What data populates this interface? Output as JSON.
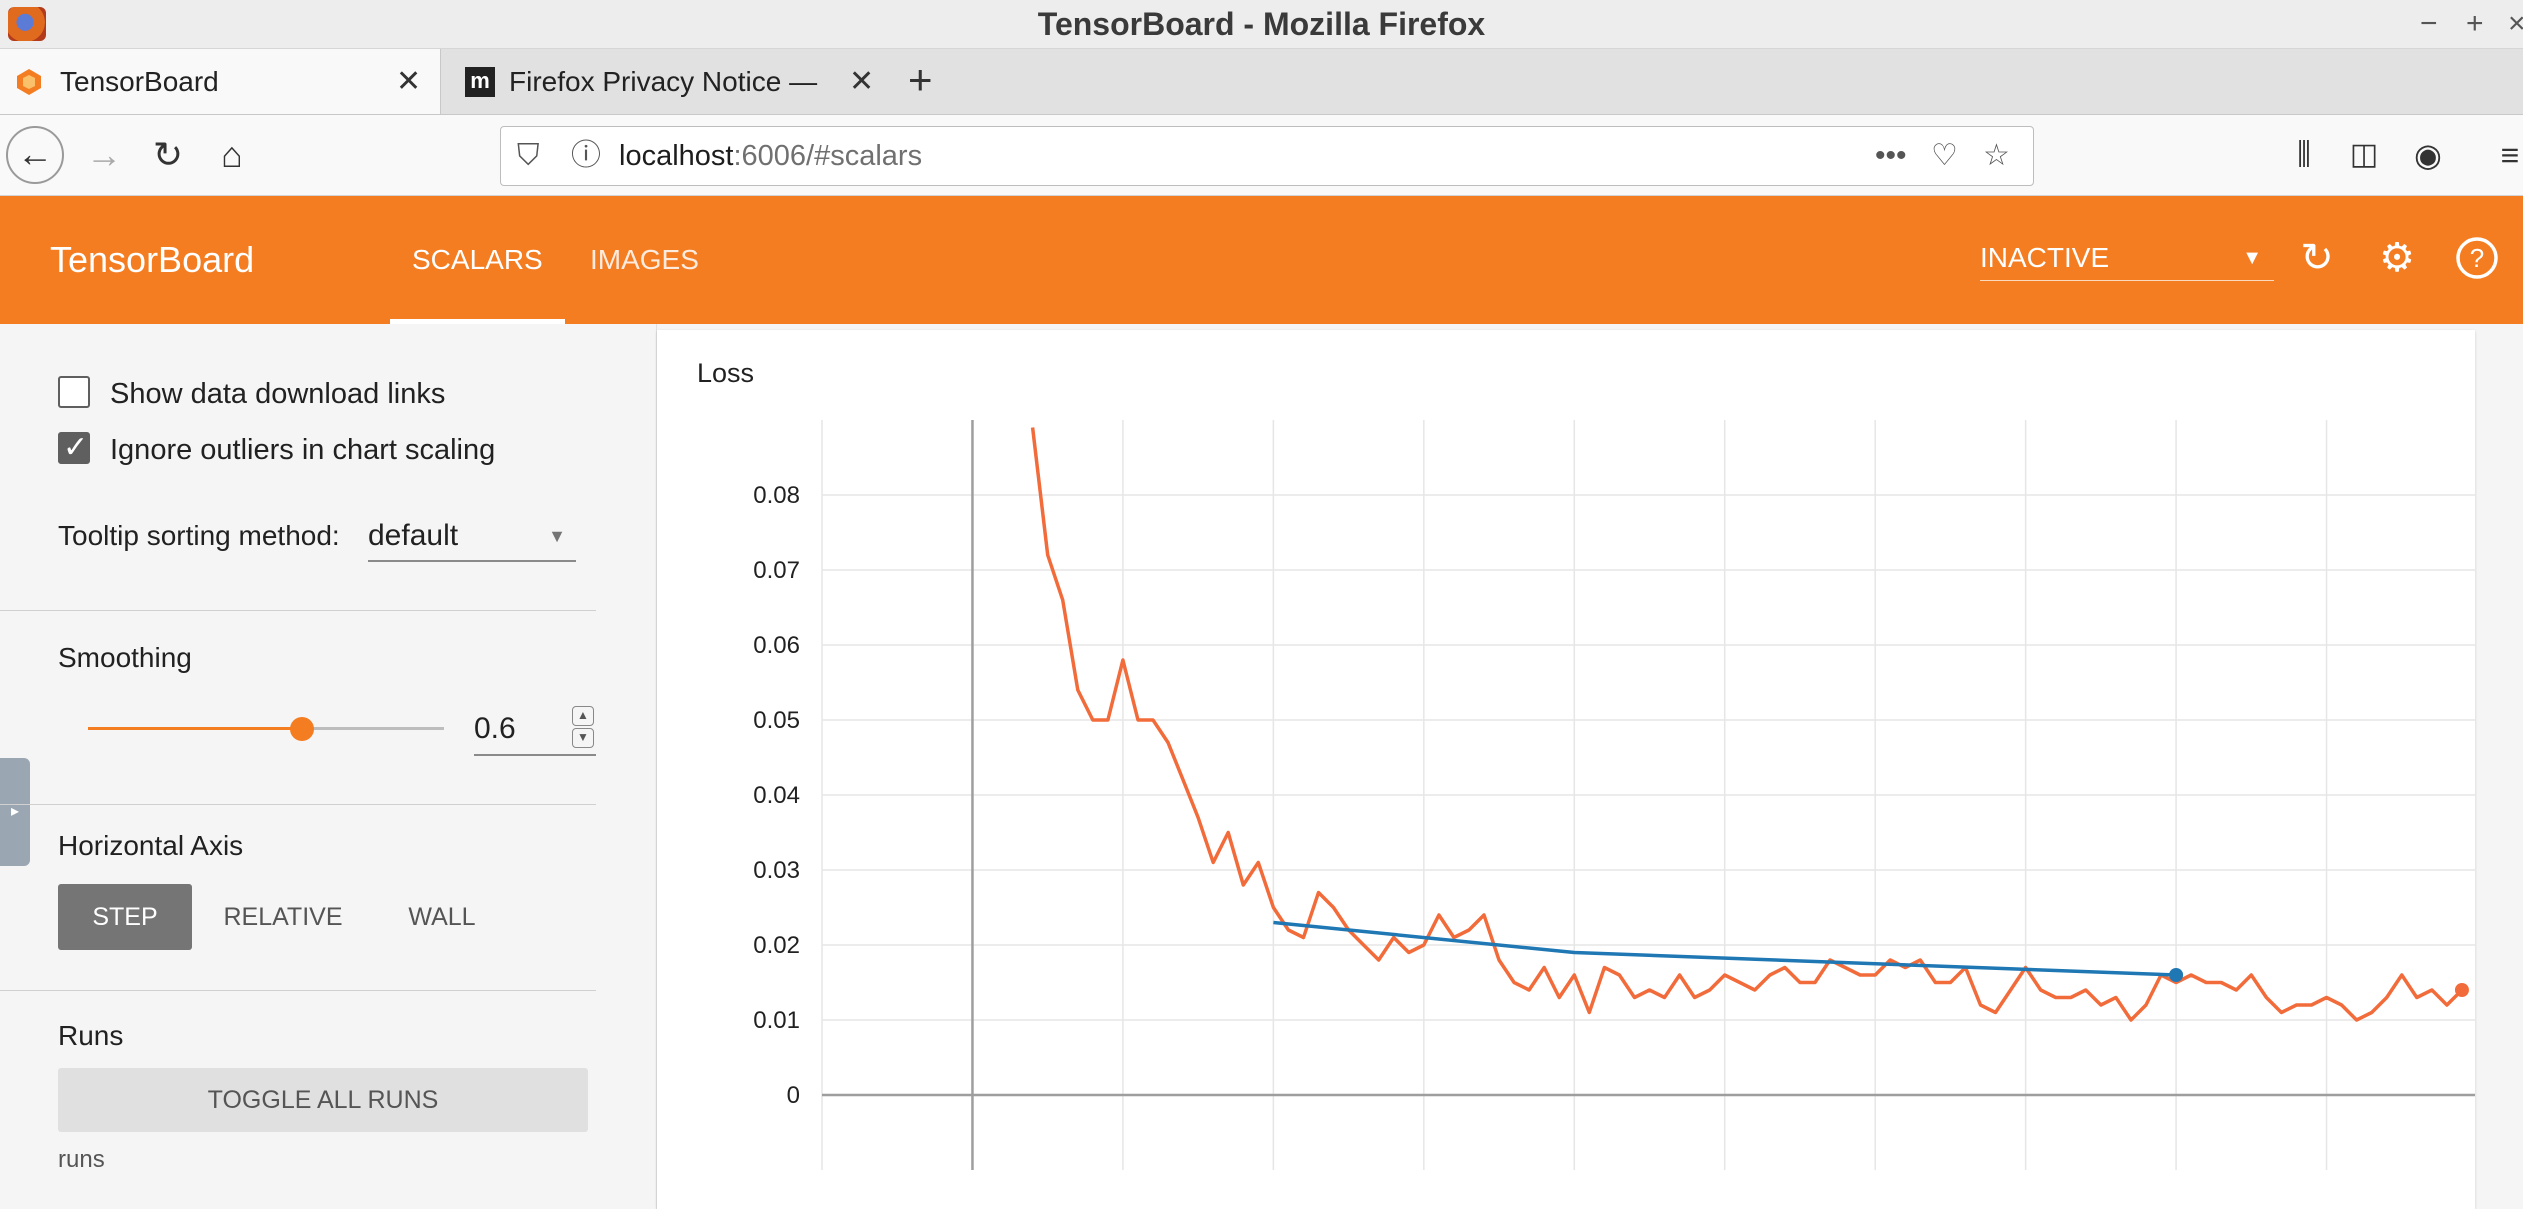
{
  "window": {
    "title": "TensorBoard - Mozilla Firefox",
    "minimize": "−",
    "maximize": "+",
    "close": "×"
  },
  "tabs": [
    {
      "label": "TensorBoard",
      "active": true,
      "close": "✕"
    },
    {
      "label": "Firefox Privacy Notice —",
      "active": false,
      "close": "✕"
    }
  ],
  "new_tab": "+",
  "url": {
    "host": "localhost",
    "rest": ":6006/#scalars"
  },
  "tensorboard": {
    "brand": "TensorBoard",
    "tabs": [
      "SCALARS",
      "IMAGES"
    ],
    "active_tab": "SCALARS",
    "run_status": "INACTIVE",
    "accent_color": "#f47d22"
  },
  "sidebar": {
    "show_download_links": {
      "label": "Show data download links",
      "checked": false
    },
    "ignore_outliers": {
      "label": "Ignore outliers in chart scaling",
      "checked": true
    },
    "tooltip_sorting": {
      "label": "Tooltip sorting method:",
      "value": "default"
    },
    "smoothing": {
      "label": "Smoothing",
      "value": "0.6",
      "fraction": 0.6
    },
    "horizontal_axis": {
      "label": "Horizontal Axis",
      "options": [
        "STEP",
        "RELATIVE",
        "WALL"
      ],
      "selected": "STEP"
    },
    "runs": {
      "label": "Runs",
      "toggle_button": "TOGGLE ALL RUNS",
      "caption": "runs"
    }
  },
  "chart_data": {
    "type": "line",
    "title": "Loss",
    "ylim": [
      -0.01,
      0.09
    ],
    "yticks": [
      "0.08",
      "0.07",
      "0.06",
      "0.05",
      "0.04",
      "0.03",
      "0.02",
      "0.01",
      "0"
    ],
    "x_range": [
      -10,
      100
    ],
    "grid": true,
    "series": [
      {
        "color": "#f26b3a",
        "x": [
          4,
          5,
          6,
          7,
          8,
          9,
          10,
          11,
          12,
          13,
          14,
          15,
          16,
          17,
          18,
          19,
          20,
          21,
          22,
          23,
          24,
          25,
          26,
          27,
          28,
          29,
          30,
          31,
          32,
          33,
          34,
          35,
          36,
          37,
          38,
          39,
          40,
          41,
          42,
          43,
          44,
          45,
          46,
          47,
          48,
          49,
          50,
          51,
          52,
          53,
          54,
          55,
          56,
          57,
          58,
          59,
          60,
          61,
          62,
          63,
          64,
          65,
          66,
          67,
          68,
          69,
          70,
          71,
          72,
          73,
          74,
          75,
          76,
          77,
          78,
          79,
          80,
          81,
          82,
          83,
          84,
          85,
          86,
          87,
          88,
          89,
          90,
          91,
          92,
          93,
          94,
          95,
          96,
          97,
          98,
          99
        ],
        "y": [
          0.089,
          0.072,
          0.066,
          0.054,
          0.05,
          0.05,
          0.058,
          0.05,
          0.05,
          0.047,
          0.042,
          0.037,
          0.031,
          0.035,
          0.028,
          0.031,
          0.025,
          0.022,
          0.021,
          0.027,
          0.025,
          0.022,
          0.02,
          0.018,
          0.021,
          0.019,
          0.02,
          0.024,
          0.021,
          0.022,
          0.024,
          0.018,
          0.015,
          0.014,
          0.017,
          0.013,
          0.016,
          0.011,
          0.017,
          0.016,
          0.013,
          0.014,
          0.013,
          0.016,
          0.013,
          0.014,
          0.016,
          0.015,
          0.014,
          0.016,
          0.017,
          0.015,
          0.015,
          0.018,
          0.017,
          0.016,
          0.016,
          0.018,
          0.017,
          0.018,
          0.015,
          0.015,
          0.017,
          0.012,
          0.011,
          0.014,
          0.017,
          0.014,
          0.013,
          0.013,
          0.014,
          0.012,
          0.013,
          0.01,
          0.012,
          0.016,
          0.015,
          0.016,
          0.015,
          0.015,
          0.014,
          0.016,
          0.013,
          0.011,
          0.012,
          0.012,
          0.013,
          0.012,
          0.01,
          0.011,
          0.013,
          0.016,
          0.013,
          0.014,
          0.012,
          0.014
        ]
      },
      {
        "color": "#1f77b4",
        "x": [
          20,
          40,
          80
        ],
        "y": [
          0.023,
          0.019,
          0.016
        ]
      }
    ]
  }
}
